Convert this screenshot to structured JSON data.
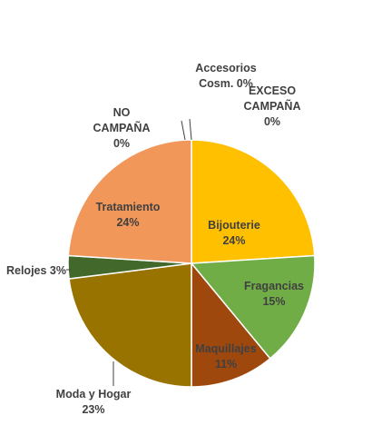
{
  "chart_data": {
    "type": "pie",
    "title": "",
    "start_angle_deg": 0,
    "direction": "clockwise",
    "slices": [
      {
        "name": "Bijouterie",
        "value": 24,
        "label": "24%",
        "color": "#FFC000",
        "text_color": "#404040",
        "label_inside": true
      },
      {
        "name": "Fragancias",
        "value": 15,
        "label": "15%",
        "color": "#70AD47",
        "text_color": "#404040",
        "label_inside": true
      },
      {
        "name": "Maquillajes",
        "value": 11,
        "label": "11%",
        "color": "#9E480E",
        "text_color": "#404040",
        "label_inside": true
      },
      {
        "name": "Moda y Hogar",
        "value": 23,
        "label": "23%",
        "color": "#997300",
        "text_color": "#404040",
        "label_inside": false
      },
      {
        "name": "Relojes",
        "value": 3,
        "label": "3%",
        "color": "#43682B",
        "text_color": "#404040",
        "label_inside": false
      },
      {
        "name": "Tratamiento",
        "value": 24,
        "label": "24%",
        "color": "#F1975A",
        "text_color": "#404040",
        "label_inside": true
      },
      {
        "name": "NO CAMPAÑA",
        "value": 0,
        "label": "0%",
        "color": "#5B9BD5",
        "text_color": "#404040",
        "label_inside": false
      },
      {
        "name": "Accesorios Cosm.",
        "value": 0,
        "label": "0%",
        "color": "#ED7D31",
        "text_color": "#404040",
        "label_inside": false
      },
      {
        "name": "EXCESO CAMPAÑA",
        "value": 0,
        "label": "0%",
        "color": "#A5A5A5",
        "text_color": "#404040",
        "label_inside": false
      }
    ]
  }
}
